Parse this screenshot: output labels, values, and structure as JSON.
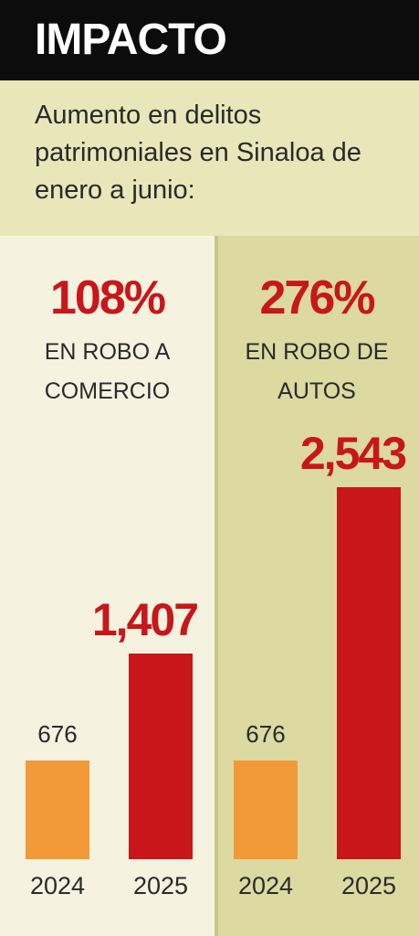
{
  "header": {
    "title": "IMPACTO",
    "subtitle": "Aumento en delitos patrimoniales en Sinaloa de enero a junio:"
  },
  "chart_data": [
    {
      "type": "bar",
      "title": "108%",
      "subtitle": "EN ROBO A COMERCIO",
      "categories": [
        "2024",
        "2025"
      ],
      "values": [
        676,
        1407
      ],
      "value_labels": [
        "676",
        "1,407"
      ],
      "colors": [
        "#f39a38",
        "#c8161b"
      ]
    },
    {
      "type": "bar",
      "title": "276%",
      "subtitle": "EN ROBO DE AUTOS",
      "categories": [
        "2024",
        "2025"
      ],
      "values": [
        676,
        2543
      ],
      "value_labels": [
        "676",
        "2,543"
      ],
      "colors": [
        "#f39a38",
        "#c8161b"
      ]
    }
  ]
}
